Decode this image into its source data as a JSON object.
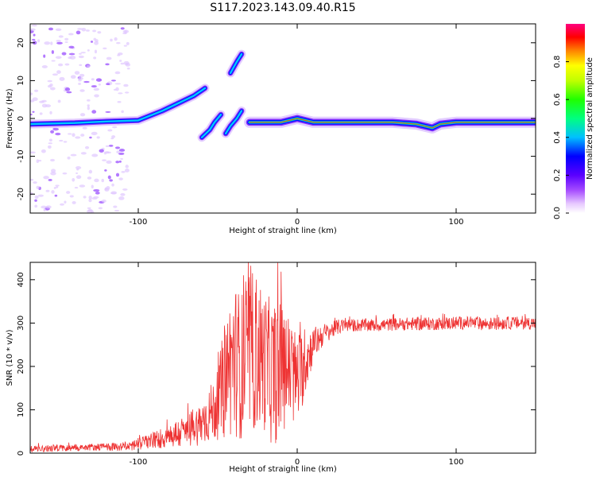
{
  "figure": {
    "title": "S117.2023.143.09.40.R15"
  },
  "chart_data": [
    {
      "type": "heatmap",
      "xlabel": "Height of straight line (km)",
      "ylabel": "Frequency (Hz)",
      "xlim": [
        -168,
        150
      ],
      "ylim": [
        -25,
        25
      ],
      "xticks": [
        -100,
        0,
        100
      ],
      "yticks": [
        -20,
        -10,
        0,
        10,
        20
      ],
      "colorbar": {
        "label": "Normalized spectral amplitude",
        "range": [
          0,
          1
        ],
        "ticks": [
          0.0,
          0.2,
          0.4,
          0.6,
          0.8
        ],
        "colors": [
          "#ffffff",
          "#a64dff",
          "#5a00ff",
          "#0000ff",
          "#00c0ff",
          "#00ff80",
          "#20ff00",
          "#c0ff00",
          "#ffff00",
          "#ff8000",
          "#ff0000",
          "#ff0080"
        ]
      },
      "segments": [
        {
          "x": [
            -168,
            -140,
            -120,
            -100,
            -85,
            -75,
            -65,
            -58
          ],
          "y": [
            -1.5,
            -1.2,
            -0.8,
            -0.5,
            2,
            4,
            6,
            8
          ],
          "amplitude": 0.35
        },
        {
          "x": [
            -30,
            -10,
            0,
            10,
            40,
            60,
            75,
            85,
            90,
            100,
            150
          ],
          "y": [
            -1,
            -1,
            0,
            -1,
            -1,
            -1,
            -1.5,
            -2.5,
            -1.5,
            -1,
            -1
          ],
          "amplitude": 0.85
        },
        {
          "x": [
            -60,
            -55,
            -52,
            -48
          ],
          "y": [
            -5,
            -3,
            -1,
            1
          ],
          "amplitude": 0.3
        },
        {
          "x": [
            -45,
            -42,
            -38,
            -35
          ],
          "y": [
            -4,
            -2,
            0,
            2
          ],
          "amplitude": 0.3
        },
        {
          "x": [
            -42,
            -38,
            -35
          ],
          "y": [
            12,
            15,
            17
          ],
          "amplitude": 0.3
        }
      ]
    },
    {
      "type": "line",
      "xlabel": "Height of straight line (km)",
      "ylabel": "SNR (10 * v/v)",
      "xlim": [
        -168,
        150
      ],
      "ylim": [
        0,
        440
      ],
      "xticks": [
        -100,
        0,
        100
      ],
      "yticks": [
        0,
        100,
        200,
        300,
        400
      ],
      "series": [
        {
          "color": "#ee3333",
          "x": [
            -168,
            -150,
            -130,
            -110,
            -100,
            -90,
            -80,
            -70,
            -60,
            -50,
            -45,
            -40,
            -35,
            -30,
            -25,
            -20,
            -15,
            -10,
            -5,
            0,
            5,
            10,
            15,
            20,
            25,
            30,
            40,
            50,
            60,
            70,
            80,
            90,
            100,
            110,
            120,
            130,
            140,
            150
          ],
          "values": [
            10,
            12,
            14,
            15,
            20,
            30,
            40,
            50,
            70,
            110,
            180,
            220,
            200,
            240,
            230,
            210,
            180,
            200,
            190,
            170,
            210,
            250,
            270,
            280,
            290,
            295,
            295,
            295,
            297,
            298,
            298,
            299,
            300,
            300,
            298,
            300,
            300,
            300
          ],
          "noise_amplitude": [
            8,
            8,
            8,
            10,
            15,
            20,
            30,
            40,
            50,
            80,
            150,
            180,
            170,
            200,
            180,
            160,
            170,
            150,
            130,
            110,
            80,
            40,
            30,
            20,
            18,
            15,
            15,
            15,
            15,
            15,
            15,
            15,
            15,
            15,
            15,
            15,
            15,
            15
          ]
        }
      ]
    }
  ]
}
